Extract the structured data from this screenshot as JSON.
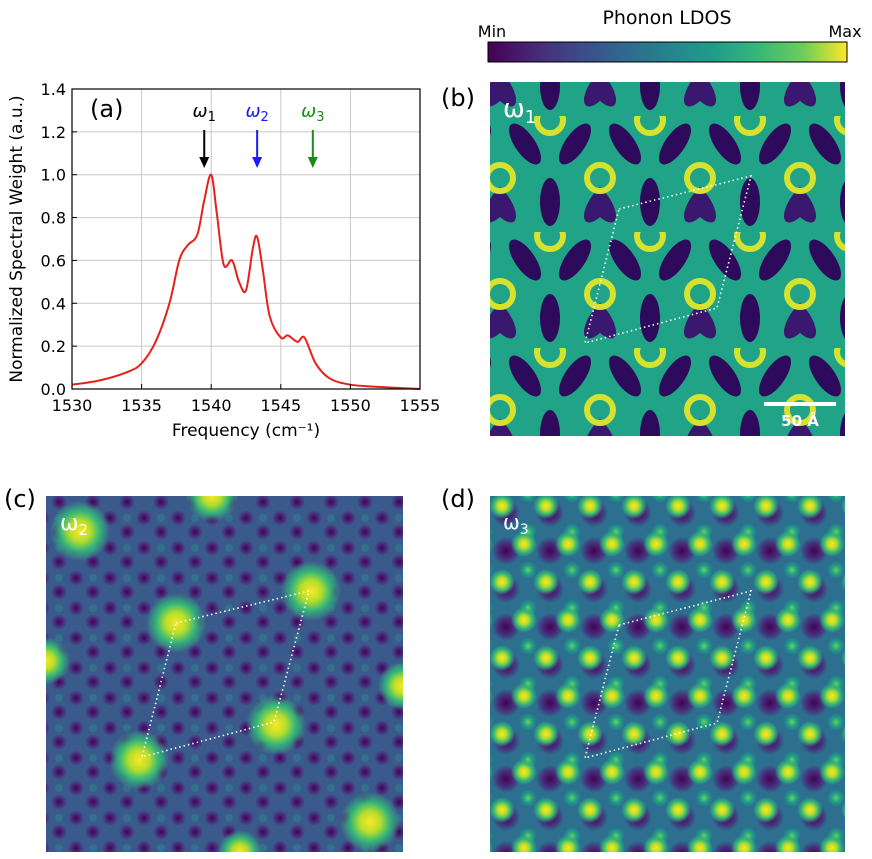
{
  "colorbar": {
    "title": "Phonon LDOS",
    "min_label": "Min",
    "max_label": "Max",
    "colormap": "viridis"
  },
  "panels": {
    "a": {
      "label": "(a)"
    },
    "b": {
      "label": "(b)",
      "mode": "ω",
      "mode_sub": "1",
      "scale_bar": "50 Å"
    },
    "c": {
      "label": "(c)",
      "mode": "ω",
      "mode_sub": "2"
    },
    "d": {
      "label": "(d)",
      "mode": "ω",
      "mode_sub": "3"
    }
  },
  "chart_data": {
    "type": "line",
    "xlabel": "Frequency (cm⁻¹)",
    "ylabel": "Normalized Spectral Weight (a.u.)",
    "xlim": [
      1530,
      1555
    ],
    "ylim": [
      0,
      1.4
    ],
    "xticks": [
      1530,
      1535,
      1540,
      1545,
      1550,
      1555
    ],
    "yticks": [
      0.0,
      0.2,
      0.4,
      0.6,
      0.8,
      1.0,
      1.2,
      1.4
    ],
    "grid": true,
    "series": [
      {
        "color": "#e8201a",
        "x": [
          1530,
          1532,
          1534,
          1535,
          1536,
          1537,
          1537.7,
          1538.3,
          1539,
          1539.5,
          1540,
          1540.4,
          1540.9,
          1541.5,
          1542,
          1542.5,
          1543,
          1543.3,
          1543.7,
          1544.2,
          1545,
          1545.5,
          1546.2,
          1546.7,
          1547.5,
          1548.5,
          1550,
          1552,
          1555
        ],
        "y": [
          0.02,
          0.04,
          0.08,
          0.12,
          0.22,
          0.4,
          0.6,
          0.67,
          0.72,
          0.88,
          1.0,
          0.82,
          0.58,
          0.6,
          0.5,
          0.46,
          0.66,
          0.71,
          0.56,
          0.34,
          0.24,
          0.25,
          0.22,
          0.24,
          0.12,
          0.05,
          0.02,
          0.01,
          0.0
        ]
      }
    ],
    "annotations": [
      {
        "symbol": "ω",
        "sub": "1",
        "x": 1539.5,
        "color": "#000000"
      },
      {
        "symbol": "ω",
        "sub": "2",
        "x": 1543.3,
        "color": "#1a1aff"
      },
      {
        "symbol": "ω",
        "sub": "3",
        "x": 1547.3,
        "color": "#1a8a1a"
      }
    ]
  }
}
